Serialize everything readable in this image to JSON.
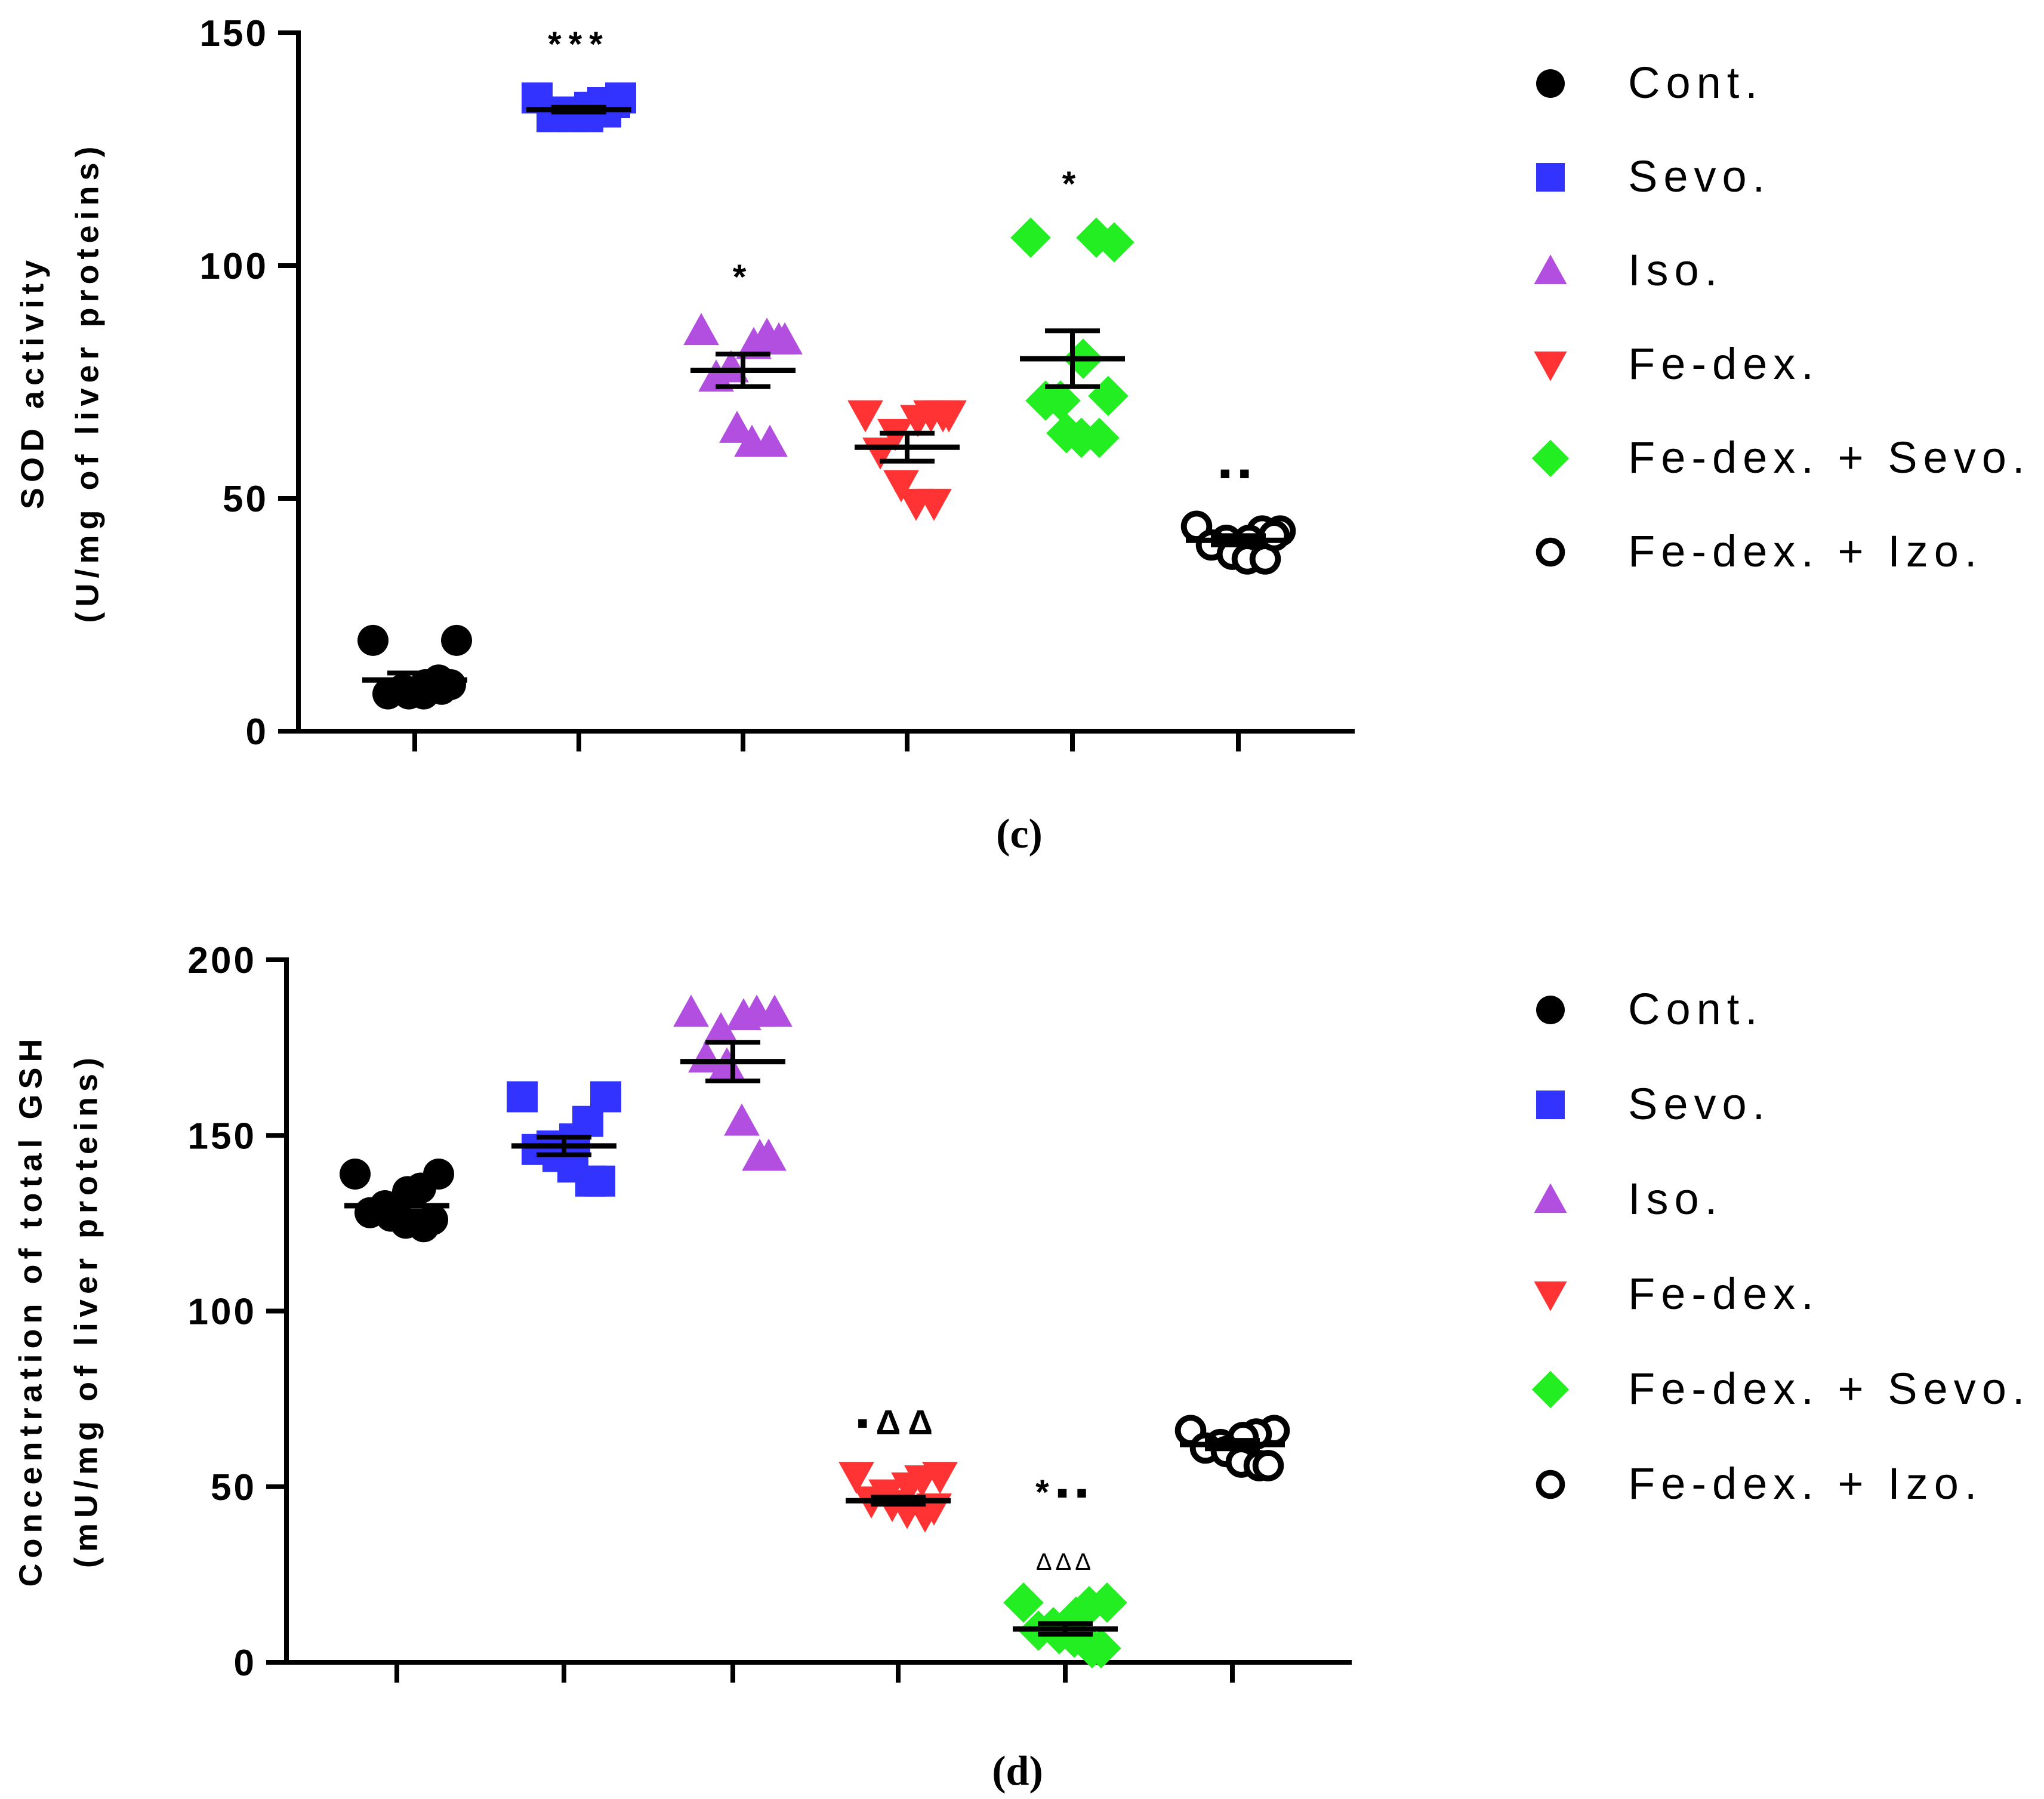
{
  "colors": {
    "cont": "#000000",
    "sevo": "#3333ff",
    "iso": "#b34fe0",
    "fedex": "#ff3333",
    "fedex_sevo": "#22ee22",
    "fedex_izo": "#000000"
  },
  "legend": [
    {
      "label": "Cont.",
      "marker": "circle",
      "color_key": "cont"
    },
    {
      "label": "Sevo.",
      "marker": "square",
      "color_key": "sevo"
    },
    {
      "label": "Iso.",
      "marker": "triangle-up",
      "color_key": "iso"
    },
    {
      "label": "Fe-dex.",
      "marker": "triangle-down",
      "color_key": "fedex"
    },
    {
      "label": "Fe-dex. + Sevo.",
      "marker": "diamond",
      "color_key": "fedex_sevo"
    },
    {
      "label": "Fe-dex. + Izo.",
      "marker": "open-circle",
      "color_key": "fedex_izo"
    }
  ],
  "chart_data": [
    {
      "type": "scatter",
      "panel_label": "(c)",
      "title": "",
      "xlabel": "",
      "ylabel": [
        "SOD activity",
        "(U/mg of liver proteins)"
      ],
      "ylim": [
        0,
        150
      ],
      "yticks": [
        "0",
        "50",
        "100",
        "150"
      ],
      "groups": [
        {
          "name": "Cont.",
          "marker": "circle",
          "color_key": "cont",
          "points": [
            19.5,
            19.5,
            11,
            10,
            9,
            8,
            8,
            8,
            9,
            10
          ],
          "mean": 11,
          "sem": 1.5,
          "annotation": ""
        },
        {
          "name": "Sevo.",
          "marker": "square",
          "color_key": "sevo",
          "points": [
            136,
            136,
            135,
            134,
            133,
            132,
            132,
            132,
            133,
            135
          ],
          "mean": 133.5,
          "sem": 0.5,
          "annotation": "***"
        },
        {
          "name": "Iso.",
          "marker": "triangle-up",
          "color_key": "iso",
          "points": [
            86,
            84,
            85,
            83,
            78,
            76,
            65,
            62,
            62,
            84
          ],
          "mean": 77.5,
          "sem": 3.5,
          "annotation": "*"
        },
        {
          "name": "Fe-dex.",
          "marker": "triangle-down",
          "color_key": "fedex",
          "points": [
            68,
            68,
            68,
            67,
            64,
            60,
            53,
            49,
            49,
            68
          ],
          "mean": 61,
          "sem": 3,
          "annotation": ""
        },
        {
          "name": "Fe-dex. + Sevo.",
          "marker": "diamond",
          "color_key": "fedex_sevo",
          "points": [
            106,
            105,
            106,
            80,
            71,
            71,
            64,
            63,
            63,
            72
          ],
          "mean": 80,
          "sem": 6,
          "annotation": "*"
        },
        {
          "name": "Fe-dex. + Izo.",
          "marker": "open-circle",
          "color_key": "fedex_izo",
          "points": [
            44,
            43,
            43,
            41,
            41,
            40,
            38,
            37,
            37,
            42
          ],
          "mean": 41,
          "sem": 1,
          "annotation": "▪▪"
        }
      ]
    },
    {
      "type": "scatter",
      "panel_label": "(d)",
      "title": "",
      "xlabel": "",
      "ylabel": [
        "Concentration of total GSH",
        "(mU/mg of liver proteins)"
      ],
      "ylim": [
        0,
        200
      ],
      "yticks": [
        "0",
        "50",
        "100",
        "150",
        "200"
      ],
      "groups": [
        {
          "name": "Cont.",
          "marker": "circle",
          "color_key": "cont",
          "points": [
            139,
            139,
            135,
            134,
            130,
            128,
            127,
            125,
            124,
            126
          ],
          "mean": 130,
          "sem": 1.5,
          "annotation": ""
        },
        {
          "name": "Sevo.",
          "marker": "square",
          "color_key": "sevo",
          "points": [
            161,
            161,
            154,
            149,
            147,
            146,
            144,
            141,
            137,
            137
          ],
          "mean": 147,
          "sem": 2.5,
          "annotation": ""
        },
        {
          "name": "Iso.",
          "marker": "triangle-up",
          "color_key": "iso",
          "points": [
            185,
            185,
            185,
            184,
            180,
            172,
            170,
            154,
            144,
            144
          ],
          "mean": 171,
          "sem": 5.5,
          "annotation": ""
        },
        {
          "name": "Fe-dex.",
          "marker": "triangle-down",
          "color_key": "fedex",
          "points": [
            53,
            53,
            52,
            50,
            48,
            46,
            45,
            43,
            42,
            44
          ],
          "mean": 46,
          "sem": 1,
          "annotation": "▪ΔΔ"
        },
        {
          "name": "Fe-dex. + Sevo.",
          "marker": "diamond",
          "color_key": "fedex_sevo",
          "points": [
            17,
            17,
            16,
            13,
            10,
            9,
            8,
            7,
            4,
            4
          ],
          "mean": 9.5,
          "sem": 1.5,
          "annotation": "*▪▪",
          "annotation2": "ΔΔΔ"
        },
        {
          "name": "Fe-dex. + Izo.",
          "marker": "open-circle",
          "color_key": "fedex_izo",
          "points": [
            66,
            66,
            65,
            64,
            62,
            61,
            60,
            57,
            56,
            56
          ],
          "mean": 62,
          "sem": 1.2,
          "annotation": ""
        }
      ]
    }
  ]
}
